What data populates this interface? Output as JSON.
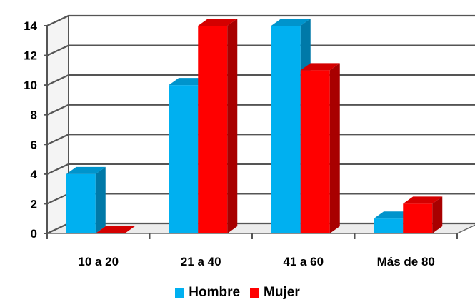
{
  "chart_data": {
    "type": "bar",
    "categories": [
      "10 a 20",
      "21 a 40",
      "41 a 60",
      "Más de 80"
    ],
    "series": [
      {
        "name": "Hombre",
        "values": [
          4,
          10,
          14,
          1
        ],
        "color": "#00B0F0",
        "side_color": "#0079A8",
        "top_color": "#0094CC"
      },
      {
        "name": "Mujer",
        "values": [
          0,
          14,
          11,
          2
        ],
        "color": "#FF0000",
        "side_color": "#A80000",
        "top_color": "#D40000"
      }
    ],
    "yticks": [
      "0",
      "2",
      "4",
      "6",
      "8",
      "10",
      "12",
      "14"
    ],
    "ylim": [
      0,
      14
    ],
    "grid": true,
    "three_d": true,
    "legend_position": "bottom"
  }
}
